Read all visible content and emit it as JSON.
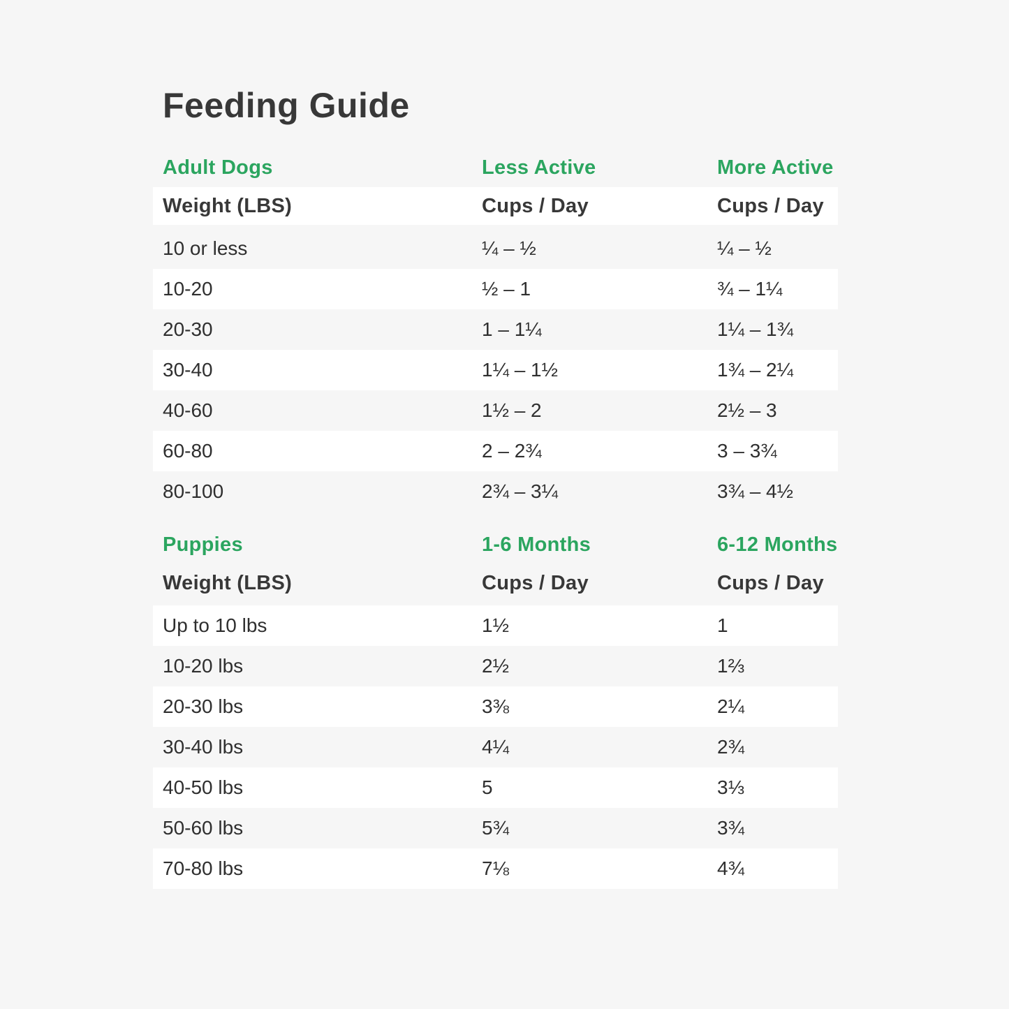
{
  "title": "Feeding Guide",
  "colors": {
    "page_bg": "#f6f6f6",
    "row_white": "#ffffff",
    "accent": "#2ba55f",
    "text_dark": "#383838",
    "cell_text": "#2f2f2f"
  },
  "adult": {
    "section_label": "Adult Dogs",
    "col2_label": "Less Active",
    "col3_label": "More Active",
    "subheader": {
      "col1": "Weight (LBS)",
      "col2": "Cups / Day",
      "col3": "Cups / Day"
    },
    "rows": [
      {
        "weight": "10 or less",
        "col2": "¼ – ½",
        "col3": "¼ – ½"
      },
      {
        "weight": "10-20",
        "col2": "½ – 1",
        "col3": "¾ – 1¼"
      },
      {
        "weight": "20-30",
        "col2": "1 – 1¼",
        "col3": "1¼ – 1¾"
      },
      {
        "weight": "30-40",
        "col2": "1¼ – 1½",
        "col3": "1¾ – 2¼"
      },
      {
        "weight": "40-60",
        "col2": "1½ – 2",
        "col3": "2½ – 3"
      },
      {
        "weight": "60-80",
        "col2": "2 – 2¾",
        "col3": "3 – 3¾"
      },
      {
        "weight": "80-100",
        "col2": "2¾ – 3¼",
        "col3": "3¾ – 4½"
      }
    ]
  },
  "puppies": {
    "section_label": "Puppies",
    "col2_label": "1-6 Months",
    "col3_label": "6-12 Months",
    "subheader": {
      "col1": "Weight (LBS)",
      "col2": "Cups / Day",
      "col3": "Cups / Day"
    },
    "rows": [
      {
        "weight": "Up to 10 lbs",
        "col2": "1½",
        "col3": "1"
      },
      {
        "weight": "10-20 lbs",
        "col2": "2½",
        "col3": "1⅔"
      },
      {
        "weight": "20-30 lbs",
        "col2": "3⅜",
        "col3": "2¼"
      },
      {
        "weight": "30-40 lbs",
        "col2": "4¼",
        "col3": "2¾"
      },
      {
        "weight": "40-50 lbs",
        "col2": "5",
        "col3": "3⅓"
      },
      {
        "weight": "50-60 lbs",
        "col2": "5¾",
        "col3": "3¾"
      },
      {
        "weight": "70-80 lbs",
        "col2": "7⅛",
        "col3": "4¾"
      }
    ]
  }
}
